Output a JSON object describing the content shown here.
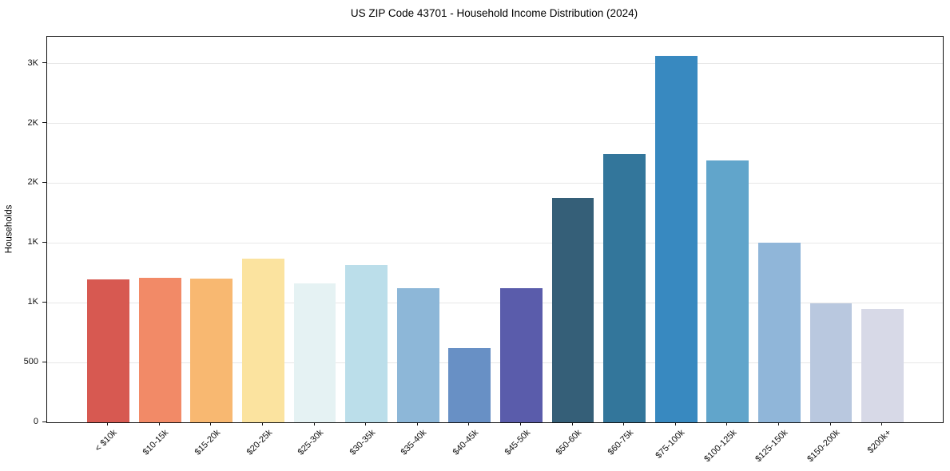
{
  "figure": {
    "background": "#ffffff",
    "text_color": "#111111",
    "grid_color": "#e7e7e7",
    "axis_color": "#111111"
  },
  "chart_data": {
    "type": "bar",
    "title": "US ZIP Code 43701 - Household Income Distribution (2024)",
    "xlabel": "",
    "ylabel": "Households",
    "categories": [
      "< $10k",
      "$10-15k",
      "$15-20k",
      "$20-25k",
      "$25-30k",
      "$30-35k",
      "$35-40k",
      "$40-45k",
      "$45-50k",
      "$50-60k",
      "$60-75k",
      "$75-100k",
      "$100-125k",
      "$125-150k",
      "$150-200k",
      "$200k+"
    ],
    "values": [
      1195,
      1208,
      1200,
      1368,
      1163,
      1318,
      1124,
      622,
      1121,
      1876,
      2244,
      3067,
      2192,
      1500,
      997,
      950
    ],
    "bar_colors": [
      "#d75951",
      "#f28a67",
      "#f8b871",
      "#fbe39f",
      "#e5f2f3",
      "#bbdeea",
      "#8db7d8",
      "#6890c5",
      "#5a5cab",
      "#355f78",
      "#33769b",
      "#3889c0",
      "#61a5cb",
      "#90b6d9",
      "#b9c8df",
      "#d7d9e7"
    ],
    "ylim": [
      0,
      3225
    ],
    "yticks": {
      "values": [
        0,
        500,
        1000,
        1500,
        2000,
        2500,
        3000
      ],
      "labels": [
        "0",
        "500",
        "1K",
        "1K",
        "2K",
        "2K",
        "3K"
      ]
    },
    "grid": "horizontal-only",
    "legend": "none"
  }
}
